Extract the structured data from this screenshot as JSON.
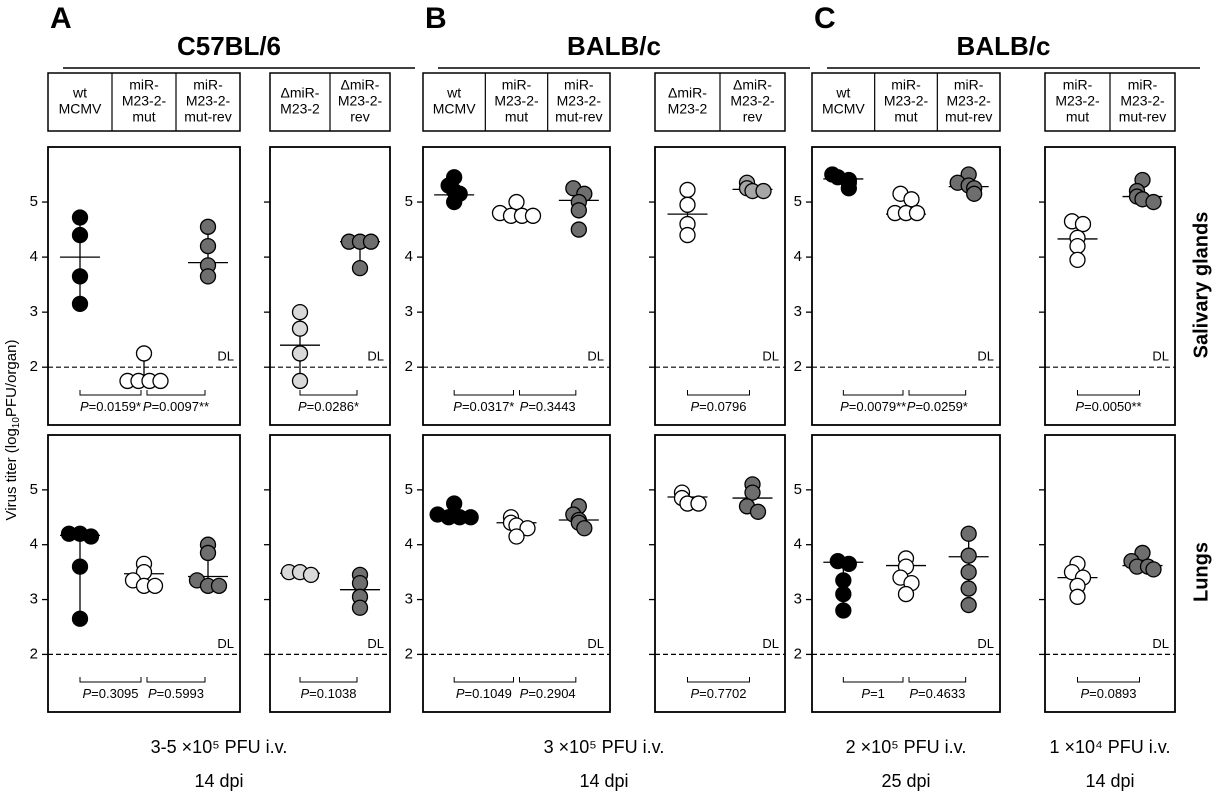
{
  "chart_data": {
    "type": "dot_plot",
    "y_label": {
      "pre": "Virus titer (log",
      "sub": "10",
      "post": "PFU/organ)"
    },
    "rows": [
      "Salivary glands",
      "Lungs"
    ],
    "ylim": [
      0.95,
      6.0
    ],
    "yticks": [
      2,
      3,
      4,
      5
    ],
    "detection_limit": 2,
    "dl_label": "DL",
    "p_symbol": "P",
    "sections": [
      {
        "letter": "A",
        "strain": "C57BL/6",
        "footers": [
          {
            "dose": "3-5 ×10⁵ PFU i.v.",
            "time": "14 dpi"
          }
        ],
        "groups": [
          {
            "conditions": [
              [
                "wt",
                "MCMV"
              ],
              [
                "miR-",
                "M23-2-",
                "mut"
              ],
              [
                "miR-",
                "M23-2-",
                "mut-rev"
              ]
            ],
            "panels": [
              {
                "series": [
                  {
                    "color": "#000000",
                    "values": [
                      4.72,
                      4.4,
                      3.65,
                      3.15
                    ],
                    "center": 4.0,
                    "whisker": [
                      3.15,
                      4.72
                    ]
                  },
                  {
                    "color": "#ffffff",
                    "values": [
                      2.25,
                      1.75,
                      1.75,
                      1.75,
                      1.75
                    ],
                    "center": 1.8,
                    "whisker": [
                      1.75,
                      2.25
                    ]
                  },
                  {
                    "color": "#6e6e6e",
                    "values": [
                      4.55,
                      4.2,
                      3.85,
                      3.65
                    ],
                    "center": 3.9,
                    "whisker": [
                      3.65,
                      4.55
                    ]
                  }
                ],
                "p_values": [
                  "=0.0159*",
                  "=0.0097**"
                ]
              },
              {
                "series": [
                  {
                    "color": "#000000",
                    "values": [
                      4.2,
                      4.2,
                      4.15,
                      3.6,
                      2.65
                    ],
                    "center": 4.17,
                    "whisker": [
                      2.65,
                      4.2
                    ]
                  },
                  {
                    "color": "#ffffff",
                    "values": [
                      3.65,
                      3.5,
                      3.35,
                      3.25,
                      3.25
                    ],
                    "center": 3.47
                  },
                  {
                    "color": "#6e6e6e",
                    "values": [
                      4.0,
                      3.85,
                      3.35,
                      3.25,
                      3.25
                    ],
                    "center": 3.42,
                    "whisker": [
                      3.25,
                      4.0
                    ]
                  }
                ],
                "p_values": [
                  "=0.3095",
                  "=0.5993"
                ]
              }
            ]
          },
          {
            "conditions": [
              [
                "ΔmiR-",
                "M23-2"
              ],
              [
                "ΔmiR-",
                "M23-2-",
                "rev"
              ]
            ],
            "panels": [
              {
                "series": [
                  {
                    "color": "#d9d9d9",
                    "values": [
                      3.0,
                      2.7,
                      2.25,
                      1.75
                    ],
                    "center": 2.4,
                    "whisker": [
                      1.75,
                      3.0
                    ]
                  },
                  {
                    "color": "#6e6e6e",
                    "values": [
                      4.28,
                      4.28,
                      4.28,
                      3.8
                    ],
                    "center": 4.28,
                    "whisker": [
                      3.8,
                      4.28
                    ]
                  }
                ],
                "p_values": [
                  "=0.0286*"
                ]
              },
              {
                "series": [
                  {
                    "color": "#d9d9d9",
                    "values": [
                      3.5,
                      3.5,
                      3.45
                    ],
                    "center": 3.48
                  },
                  {
                    "color": "#6e6e6e",
                    "values": [
                      3.45,
                      3.3,
                      3.05,
                      2.85
                    ],
                    "center": 3.18,
                    "whisker": [
                      2.85,
                      3.45
                    ]
                  }
                ],
                "p_values": [
                  "=0.1038"
                ]
              }
            ]
          }
        ]
      },
      {
        "letter": "B",
        "strain": "BALB/c",
        "footers": [
          {
            "dose": "3 ×10⁵ PFU i.v.",
            "time": "14 dpi"
          }
        ],
        "groups": [
          {
            "conditions": [
              [
                "wt",
                "MCMV"
              ],
              [
                "miR-",
                "M23-2-",
                "mut"
              ],
              [
                "miR-",
                "M23-2-",
                "mut-rev"
              ]
            ],
            "panels": [
              {
                "series": [
                  {
                    "color": "#000000",
                    "values": [
                      5.45,
                      5.3,
                      5.2,
                      5.15,
                      5.0
                    ],
                    "center": 5.13,
                    "whisker": [
                      5.0,
                      5.3
                    ]
                  },
                  {
                    "color": "#ffffff",
                    "values": [
                      5.0,
                      4.8,
                      4.75,
                      4.75,
                      4.75
                    ],
                    "center": 4.76
                  },
                  {
                    "color": "#6e6e6e",
                    "values": [
                      5.25,
                      5.15,
                      5.0,
                      4.85,
                      4.5
                    ],
                    "center": 5.03,
                    "whisker": [
                      4.7,
                      5.25
                    ]
                  }
                ],
                "p_values": [
                  "=0.0317*",
                  "=0.3443"
                ]
              },
              {
                "series": [
                  {
                    "color": "#000000",
                    "values": [
                      4.75,
                      4.55,
                      4.5,
                      4.5,
                      4.5
                    ],
                    "center": 4.52
                  },
                  {
                    "color": "#ffffff",
                    "values": [
                      4.5,
                      4.4,
                      4.35,
                      4.3,
                      4.15
                    ],
                    "center": 4.4
                  },
                  {
                    "color": "#6e6e6e",
                    "values": [
                      4.7,
                      4.55,
                      4.45,
                      4.4,
                      4.3
                    ],
                    "center": 4.45
                  }
                ],
                "p_values": [
                  "=0.1049",
                  "=0.2904"
                ]
              }
            ]
          },
          {
            "conditions": [
              [
                "ΔmiR-",
                "M23-2"
              ],
              [
                "ΔmiR-",
                "M23-2-",
                "rev"
              ]
            ],
            "panels": [
              {
                "series": [
                  {
                    "color": "#ffffff",
                    "values": [
                      5.22,
                      4.95,
                      4.6,
                      4.4
                    ],
                    "center": 4.78,
                    "whisker": [
                      4.5,
                      5.0
                    ]
                  },
                  {
                    "color": "#a6a6a6",
                    "values": [
                      5.35,
                      5.25,
                      5.2,
                      5.2
                    ],
                    "center": 5.23
                  }
                ],
                "p_values": [
                  "=0.0796"
                ]
              },
              {
                "series": [
                  {
                    "color": "#ffffff",
                    "values": [
                      4.95,
                      4.85,
                      4.75,
                      4.75
                    ],
                    "center": 4.87
                  },
                  {
                    "color": "#6e6e6e",
                    "values": [
                      5.1,
                      4.95,
                      4.7,
                      4.6
                    ],
                    "center": 4.85,
                    "whisker": [
                      4.65,
                      5.05
                    ]
                  }
                ],
                "p_values": [
                  "=0.7702"
                ]
              }
            ]
          }
        ]
      },
      {
        "letter": "C",
        "strain": "BALB/c",
        "footers": [
          {
            "dose": "2 ×10⁵ PFU i.v.",
            "time": "25 dpi"
          },
          {
            "dose": "1 ×10⁴ PFU i.v.",
            "time": "14 dpi"
          }
        ],
        "groups": [
          {
            "conditions": [
              [
                "wt",
                "MCMV"
              ],
              [
                "miR-",
                "M23-2-",
                "mut"
              ],
              [
                "miR-",
                "M23-2-",
                "mut-rev"
              ]
            ],
            "panels": [
              {
                "series": [
                  {
                    "color": "#000000",
                    "values": [
                      5.5,
                      5.45,
                      5.4,
                      5.35,
                      5.25
                    ],
                    "center": 5.42
                  },
                  {
                    "color": "#ffffff",
                    "values": [
                      5.15,
                      5.05,
                      4.8,
                      4.8,
                      4.8
                    ],
                    "center": 4.78
                  },
                  {
                    "color": "#6e6e6e",
                    "values": [
                      5.5,
                      5.35,
                      5.3,
                      5.25,
                      5.15
                    ],
                    "center": 5.28
                  }
                ],
                "p_values": [
                  "=0.0079**",
                  "=0.0259*"
                ]
              },
              {
                "series": [
                  {
                    "color": "#000000",
                    "values": [
                      3.7,
                      3.65,
                      3.35,
                      3.1,
                      2.8
                    ],
                    "center": 3.68,
                    "whisker": [
                      2.8,
                      3.7
                    ]
                  },
                  {
                    "color": "#ffffff",
                    "values": [
                      3.75,
                      3.6,
                      3.4,
                      3.3,
                      3.1
                    ],
                    "center": 3.62
                  },
                  {
                    "color": "#6e6e6e",
                    "values": [
                      4.2,
                      3.8,
                      3.5,
                      3.2,
                      2.9
                    ],
                    "center": 3.78,
                    "whisker": [
                      3.2,
                      4.2
                    ]
                  }
                ],
                "p_values": [
                  "=1",
                  "=0.4633"
                ]
              }
            ]
          },
          {
            "conditions": [
              [
                "miR-",
                "M23-2-",
                "mut"
              ],
              [
                "miR-",
                "M23-2-",
                "mut-rev"
              ]
            ],
            "panels": [
              {
                "series": [
                  {
                    "color": "#ffffff",
                    "values": [
                      4.65,
                      4.6,
                      4.35,
                      4.2,
                      3.95
                    ],
                    "center": 4.33,
                    "whisker": [
                      4.1,
                      4.55
                    ]
                  },
                  {
                    "color": "#6e6e6e",
                    "values": [
                      5.4,
                      5.2,
                      5.1,
                      5.05,
                      5.0
                    ],
                    "center": 5.1
                  }
                ],
                "p_values": [
                  "=0.0050**"
                ]
              },
              {
                "series": [
                  {
                    "color": "#ffffff",
                    "values": [
                      3.65,
                      3.5,
                      3.4,
                      3.25,
                      3.05
                    ],
                    "center": 3.4
                  },
                  {
                    "color": "#6e6e6e",
                    "values": [
                      3.85,
                      3.7,
                      3.6,
                      3.6,
                      3.55
                    ],
                    "center": 3.62
                  }
                ],
                "p_values": [
                  "=0.0893"
                ]
              }
            ]
          }
        ]
      }
    ]
  }
}
